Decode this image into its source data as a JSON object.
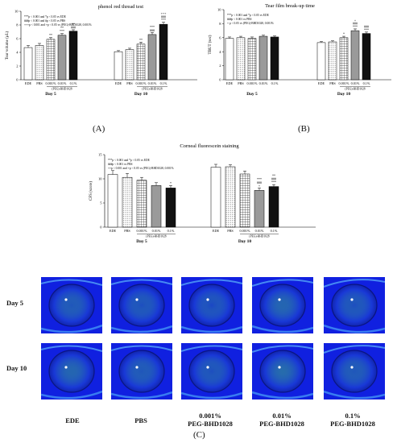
{
  "chart_data": [
    {
      "type": "bar",
      "panel": "(A)",
      "title": "phenol red thread test",
      "ylabel": "Tear volume (μL)",
      "ylim": [
        0,
        10
      ],
      "yticks": [
        "0",
        "2",
        "4",
        "6",
        "8",
        "10"
      ],
      "legend": [
        "***p < 0.001 and *p < 0.05 vs EDE",
        "###p < 0.001 and #p < 0.05 vs PBS",
        "+++p < 0.001 and +p < 0.05 vs (PEG)-BHD1028, 0.001%"
      ],
      "groups": [
        {
          "day": "Day 5",
          "bracket": "(PEG)-BHD1028",
          "bars": [
            {
              "label": "EDE",
              "value": 4.7,
              "err": 0.3,
              "sig": "",
              "pattern": "white"
            },
            {
              "label": "PBS",
              "value": 5.0,
              "err": 0.3,
              "sig": "",
              "pattern": "dots"
            },
            {
              "label": "0.001%",
              "value": 5.9,
              "err": 0.25,
              "sig": "**",
              "pattern": "grid"
            },
            {
              "label": "0.01%",
              "value": 6.5,
              "err": 0.25,
              "sig": "**\n***",
              "pattern": "gray"
            },
            {
              "label": "0.1%",
              "value": 7.1,
              "err": 0.2,
              "sig": "**\n###",
              "pattern": "black"
            }
          ]
        },
        {
          "day": "Day 10",
          "bracket": "(PEG)-BHD1028",
          "bars": [
            {
              "label": "EDE",
              "value": 4.1,
              "err": 0.15,
              "sig": "",
              "pattern": "white"
            },
            {
              "label": "PBS",
              "value": 4.4,
              "err": 0.2,
              "sig": "",
              "pattern": "dots"
            },
            {
              "label": "0.001%",
              "value": 5.2,
              "err": 0.3,
              "sig": "**",
              "pattern": "grid"
            },
            {
              "label": "0.01%",
              "value": 6.6,
              "err": 0.3,
              "sig": "***\n###",
              "pattern": "gray"
            },
            {
              "label": "0.1%",
              "value": 8.1,
              "err": 0.3,
              "sig": "+++\n###\n***",
              "pattern": "black"
            }
          ]
        }
      ]
    },
    {
      "type": "bar",
      "panel": "(B)",
      "title": "Tear film break-up time",
      "ylabel": "TBUT (sec)",
      "ylim": [
        0,
        10
      ],
      "yticks": [
        "0",
        "2",
        "4",
        "6",
        "8",
        "10"
      ],
      "legend": [
        "***p < 0.001 and *p < 0.05 vs EDE",
        "###p < 0.001 vs PBS",
        "+ p < 0.05 vs (PEG)-BHD1028, 0.001%"
      ],
      "groups": [
        {
          "day": "Day 5",
          "bracket": "",
          "bars": [
            {
              "label": "EDE",
              "value": 5.9,
              "err": 0.2,
              "sig": "",
              "pattern": "white"
            },
            {
              "label": "PBS",
              "value": 6.0,
              "err": 0.2,
              "sig": "",
              "pattern": "dots"
            },
            {
              "label": "0.001%",
              "value": 5.9,
              "err": 0.2,
              "sig": "",
              "pattern": "grid"
            },
            {
              "label": "0.01%",
              "value": 6.2,
              "err": 0.15,
              "sig": "",
              "pattern": "gray"
            },
            {
              "label": "0.1%",
              "value": 6.1,
              "err": 0.15,
              "sig": "",
              "pattern": "black"
            }
          ]
        },
        {
          "day": "Day 10",
          "bracket": "(PEG)-BHD1028",
          "bars": [
            {
              "label": "EDE",
              "value": 5.3,
              "err": 0.15,
              "sig": "",
              "pattern": "white"
            },
            {
              "label": "PBS",
              "value": 5.4,
              "err": 0.15,
              "sig": "",
              "pattern": "dots"
            },
            {
              "label": "0.001%",
              "value": 6.0,
              "err": 0.2,
              "sig": "*",
              "pattern": "grid"
            },
            {
              "label": "0.01%",
              "value": 7.0,
              "err": 0.25,
              "sig": "+\n###\n***",
              "pattern": "gray"
            },
            {
              "label": "0.1%",
              "value": 6.6,
              "err": 0.2,
              "sig": "###\n***",
              "pattern": "black"
            }
          ]
        }
      ]
    },
    {
      "type": "bar",
      "panel": "(C)",
      "title": "Corneal fluorescein staining",
      "ylabel": "CFS (score)",
      "ylim": [
        0,
        15
      ],
      "yticks": [
        "0",
        "5",
        "10",
        "15"
      ],
      "legend": [
        "***p < 0.001 and *p < 0.05 vs EDE",
        "###p < 0.001 vs PBS",
        "++p < 0.001 and +p < 0.05 vs (PEG)-BHD1028, 0.001%"
      ],
      "groups": [
        {
          "day": "Day 5",
          "bracket": "(PEG)-BHD1028",
          "bars": [
            {
              "label": "EDE",
              "value": 10.9,
              "err": 0.8,
              "sig": "",
              "pattern": "white"
            },
            {
              "label": "PBS",
              "value": 10.3,
              "err": 0.8,
              "sig": "",
              "pattern": "dots"
            },
            {
              "label": "0.001%",
              "value": 9.7,
              "err": 0.6,
              "sig": "",
              "pattern": "grid"
            },
            {
              "label": "0.01%",
              "value": 8.6,
              "err": 0.6,
              "sig": "",
              "pattern": "gray"
            },
            {
              "label": "0.1%",
              "value": 8.1,
              "err": 0.5,
              "sig": "*",
              "pattern": "black"
            }
          ]
        },
        {
          "day": "Day 10",
          "bracket": "(PEG)-BHD1028",
          "bars": [
            {
              "label": "EDE",
              "value": 12.4,
              "err": 0.6,
              "sig": "",
              "pattern": "white"
            },
            {
              "label": "PBS",
              "value": 12.5,
              "err": 0.4,
              "sig": "",
              "pattern": "dots"
            },
            {
              "label": "0.001%",
              "value": 11.0,
              "err": 0.6,
              "sig": "",
              "pattern": "grid"
            },
            {
              "label": "0.01%",
              "value": 7.6,
              "err": 0.5,
              "sig": "***\n###\n+",
              "pattern": "gray"
            },
            {
              "label": "0.1%",
              "value": 8.4,
              "err": 0.4,
              "sig": "**\n###\n***",
              "pattern": "black"
            }
          ]
        }
      ]
    }
  ],
  "panel_c_images": {
    "row_labels": [
      "Day 5",
      "Day 10"
    ],
    "column_labels": [
      "EDE",
      "PBS",
      "0.001%\nPEG-BHD1028",
      "0.01%\nPEG-BHD1028",
      "0.1%\nPEG-BHD1028"
    ],
    "background_color": "#1020e0",
    "stain_color": "#3cb878"
  },
  "panel_labels": {
    "a": "(A)",
    "b": "(B)",
    "c": "(C)"
  }
}
